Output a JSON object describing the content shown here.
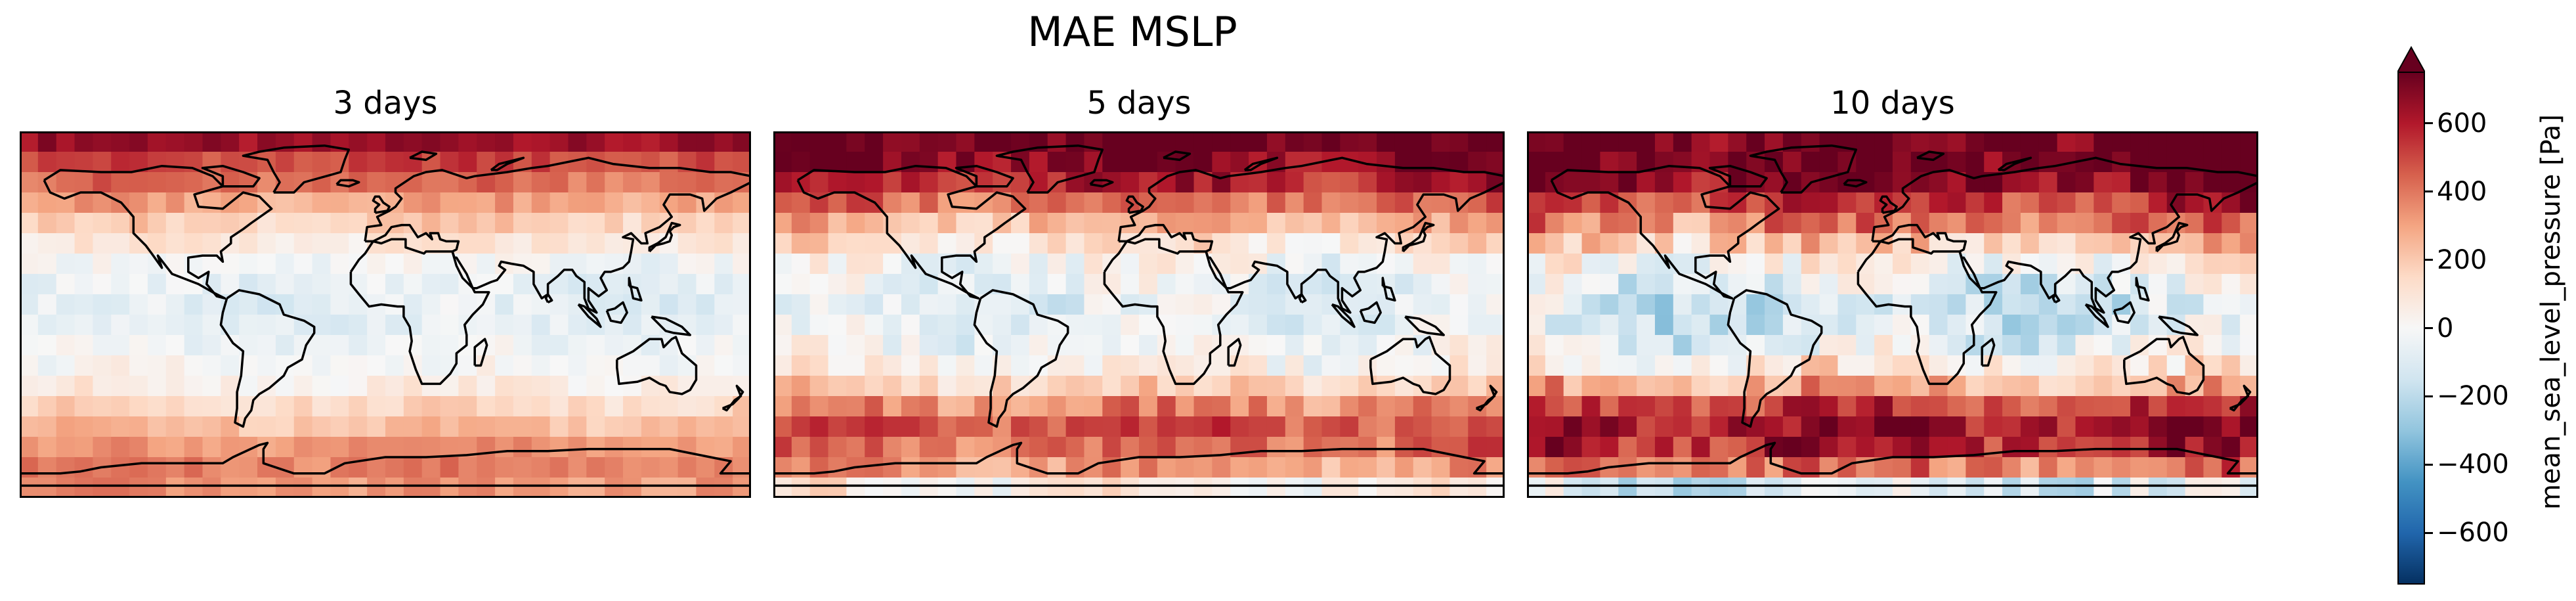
{
  "chart_data": [
    {
      "type": "heatmap",
      "title": "3 days",
      "field": "MAE MSLP",
      "units": "Pa",
      "lat_band_values": [
        650,
        500,
        420,
        300,
        180,
        80,
        -20,
        -60,
        -80,
        -70,
        -40,
        -10,
        60,
        160,
        240,
        330,
        380,
        330
      ],
      "vmin": -750,
      "vmax": 750
    },
    {
      "type": "heatmap",
      "title": "5 days",
      "field": "MAE MSLP",
      "units": "Pa",
      "lat_band_values": [
        760,
        700,
        600,
        420,
        260,
        120,
        0,
        -50,
        -80,
        -60,
        -20,
        40,
        180,
        360,
        480,
        420,
        320,
        60
      ],
      "vmin": -750,
      "vmax": 750
    },
    {
      "type": "heatmap",
      "title": "10 days",
      "field": "MAE MSLP",
      "units": "Pa",
      "lat_band_values": [
        760,
        760,
        700,
        560,
        380,
        200,
        20,
        -80,
        -140,
        -120,
        -60,
        60,
        280,
        520,
        650,
        600,
        420,
        -100
      ],
      "vmin": -750,
      "vmax": 750
    }
  ],
  "suptitle": "MAE MSLP",
  "panels": [
    {
      "title": "3 days"
    },
    {
      "title": "5 days"
    },
    {
      "title": "10 days"
    }
  ],
  "colorbar": {
    "label": "mean_sea_level_pressure [Pa]",
    "colormap": "RdBu_r",
    "vmin": -750,
    "vmax": 750,
    "extend": "max",
    "ticks": [
      {
        "value": 600,
        "label": "600"
      },
      {
        "value": 400,
        "label": "400"
      },
      {
        "value": 200,
        "label": "200"
      },
      {
        "value": 0,
        "label": "0"
      },
      {
        "value": -200,
        "label": "−200"
      },
      {
        "value": -400,
        "label": "−400"
      },
      {
        "value": -600,
        "label": "−600"
      }
    ]
  },
  "colors": {
    "coastline": "#000000",
    "cmap_stops": [
      "#053061",
      "#2166ac",
      "#4393c3",
      "#92c5de",
      "#d1e5f0",
      "#f7f7f7",
      "#fddbc7",
      "#f4a582",
      "#d6604d",
      "#b2182b",
      "#67001f"
    ]
  }
}
